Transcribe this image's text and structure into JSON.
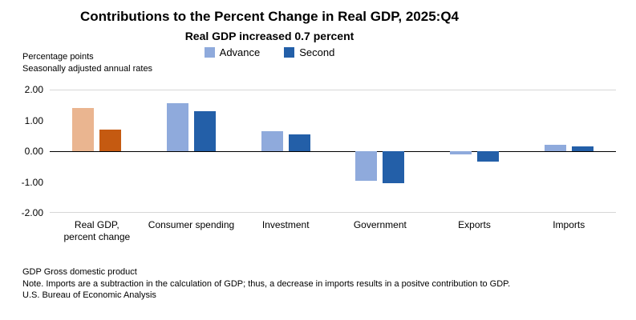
{
  "title": "Contributions to the Percent Change in Real GDP, 2025:Q4",
  "subtitle": "Real GDP increased 0.7 percent",
  "axis_notes": [
    "Percentage points",
    "Seasonally adjusted annual rates"
  ],
  "footnotes": [
    "GDP Gross domestic product",
    "Note. Imports are a subtraction in the calculation of GDP; thus, a decrease in imports results in a positve contribution to GDP.",
    "U.S. Bureau of Economic Analysis"
  ],
  "chart_data": {
    "type": "bar",
    "title": "Contributions to the Percent Change in Real GDP, 2025:Q4",
    "subtitle": "Real GDP increased 0.7 percent",
    "ylabel": "Percentage points, seasonally adjusted annual rates",
    "categories": [
      "Real GDP,\npercent change",
      "Consumer spending",
      "Investment",
      "Government",
      "Exports",
      "Imports"
    ],
    "series": [
      {
        "name": "Advance",
        "color": "#8faadc",
        "gdp_bar_color": "#eab590",
        "values": [
          1.4,
          1.55,
          0.65,
          -0.95,
          -0.1,
          0.2
        ]
      },
      {
        "name": "Second",
        "color": "#235fa8",
        "gdp_bar_color": "#c55a11",
        "values": [
          0.7,
          1.3,
          0.55,
          -1.05,
          -0.35,
          0.15
        ]
      }
    ],
    "ylim": [
      -2,
      2
    ],
    "yticks": [
      {
        "label": "2.00",
        "value": 2
      },
      {
        "label": "1.00",
        "value": 1
      },
      {
        "label": "0.00",
        "value": 0
      },
      {
        "label": "-1.00",
        "value": -1
      },
      {
        "label": "-2.00",
        "value": -2
      }
    ],
    "gridlines": [
      2,
      -2
    ],
    "zero_line": 0,
    "legend_position": "top",
    "legend_entries": [
      "Advance",
      "Second"
    ]
  }
}
